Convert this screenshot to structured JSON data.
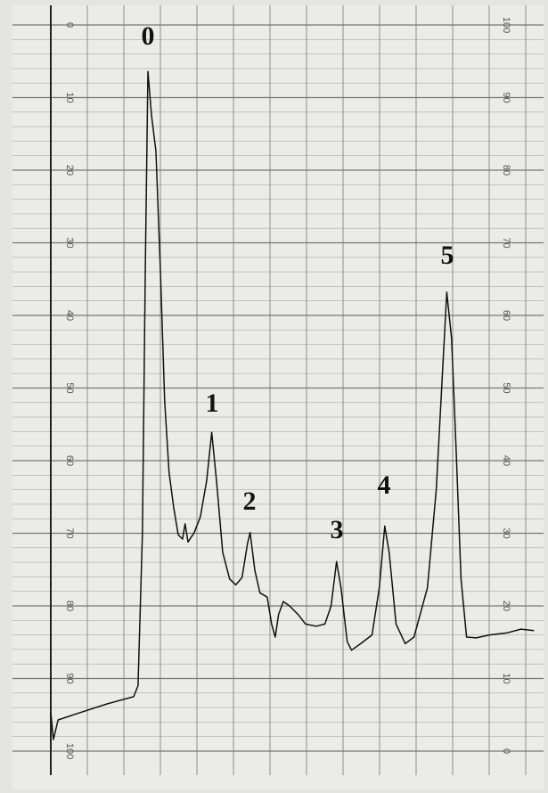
{
  "chart_data": {
    "type": "line",
    "x": [
      0,
      0.07,
      0.2,
      0.8,
      1.54,
      2.27,
      2.39,
      2.51,
      2.59,
      2.66,
      2.76,
      2.88,
      3.0,
      3.12,
      3.24,
      3.37,
      3.49,
      3.61,
      3.68,
      3.76,
      3.93,
      4.1,
      4.27,
      4.41,
      4.54,
      4.71,
      4.9,
      5.07,
      5.24,
      5.39,
      5.46,
      5.59,
      5.73,
      5.93,
      6.05,
      6.15,
      6.24,
      6.37,
      6.54,
      6.78,
      6.98,
      7.27,
      7.51,
      7.68,
      7.83,
      7.95,
      8.12,
      8.24,
      8.49,
      8.8,
      9.0,
      9.15,
      9.27,
      9.46,
      9.71,
      9.95,
      10.32,
      10.56,
      10.73,
      10.85,
      10.98,
      11.1,
      11.24,
      11.39,
      11.66,
      12.02,
      12.51,
      12.88,
      13.24
    ],
    "values": [
      5.3,
      1.6,
      4.3,
      5.3,
      6.5,
      7.5,
      9.0,
      29.8,
      66.6,
      93.6,
      87.5,
      82.6,
      66.6,
      48.2,
      38.4,
      33.5,
      29.8,
      29.2,
      31.3,
      28.8,
      30.1,
      32.3,
      37.2,
      43.9,
      37.2,
      27.4,
      23.7,
      22.9,
      23.9,
      28.6,
      30.1,
      24.9,
      21.8,
      21.2,
      17.5,
      15.7,
      18.8,
      20.6,
      20.0,
      18.8,
      17.5,
      17.2,
      17.5,
      20.0,
      26.1,
      22.5,
      15.1,
      13.9,
      14.8,
      16.0,
      22.5,
      31.0,
      27.4,
      17.5,
      14.8,
      15.7,
      22.5,
      36.0,
      51.9,
      63.2,
      56.8,
      42.1,
      23.7,
      15.7,
      15.6,
      16.0,
      16.3,
      16.8,
      16.6
    ],
    "color": "#111111",
    "xlim": [
      0,
      13.5
    ],
    "ylim": [
      0,
      100
    ],
    "yticks": [
      0,
      10,
      20,
      30,
      40,
      50,
      60,
      70,
      80,
      90,
      100
    ],
    "y2lim": [
      100,
      0
    ],
    "y2ticks": [
      0,
      10,
      20,
      30,
      40,
      50,
      60,
      70,
      80,
      90,
      100
    ],
    "grid": true,
    "annotations": [
      "0",
      "1",
      "2",
      "3",
      "4",
      "5"
    ]
  }
}
